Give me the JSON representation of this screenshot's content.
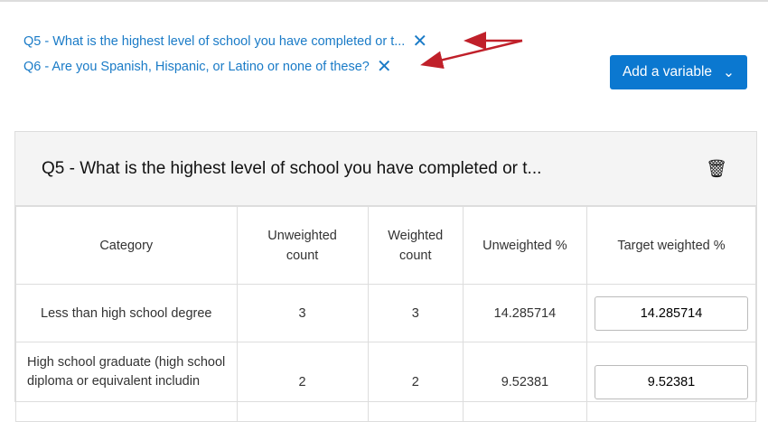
{
  "variables": [
    {
      "label": "Q5 - What is the highest level of school you have completed or t..."
    },
    {
      "label": "Q6 - Are you Spanish, Hispanic, or Latino or none of these?"
    }
  ],
  "add_variable_label": "Add a variable",
  "annotation_color": "#c0202a",
  "panel": {
    "title": "Q5 - What is the highest level of school you have completed or t...",
    "headers": [
      "Category",
      "Unweighted count",
      "Weighted count",
      "Unweighted %",
      "Target weighted %"
    ],
    "rows": [
      {
        "category": "Less than high school degree",
        "unweighted_count": "3",
        "weighted_count": "3",
        "unweighted_pct": "14.285714",
        "target": "14.285714"
      },
      {
        "category": "High school graduate (high school diploma or equivalent includin",
        "unweighted_count": "2",
        "weighted_count": "2",
        "unweighted_pct": "9.52381",
        "target": "9.52381"
      }
    ]
  }
}
